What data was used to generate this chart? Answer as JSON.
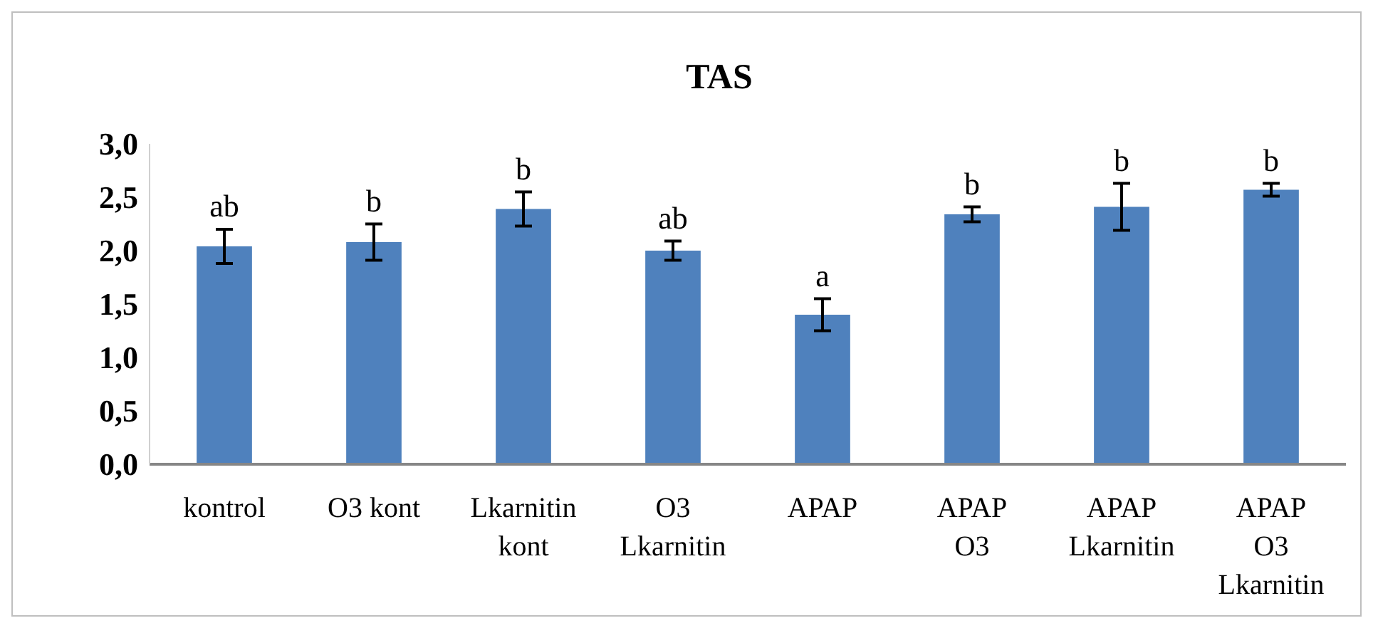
{
  "chart_data": {
    "type": "bar",
    "title": "TAS",
    "categories": [
      "kontrol",
      "O3 kont",
      "Lkarnitin\nkont",
      "O3\nLkarnitin",
      "APAP",
      "APAP\nO3",
      "APAP\nLkarnitin",
      "APAP\nO3\nLkarnitin"
    ],
    "values": [
      2.04,
      2.08,
      2.39,
      2.0,
      1.4,
      2.34,
      2.41,
      2.57
    ],
    "errors": [
      0.16,
      0.17,
      0.16,
      0.09,
      0.15,
      0.07,
      0.22,
      0.06
    ],
    "color": "#4f81bd",
    "ylim": [
      0,
      3
    ],
    "yticks": [
      {
        "value": 0,
        "label": "0,0"
      },
      {
        "value": 0.5,
        "label": "0,5"
      },
      {
        "value": 1,
        "label": "1,0"
      },
      {
        "value": 1.5,
        "label": "1,5"
      },
      {
        "value": 2,
        "label": "2,0"
      },
      {
        "value": 2.5,
        "label": "2,5"
      },
      {
        "value": 3,
        "label": "3,0"
      }
    ],
    "annotations": [
      {
        "text": "ab",
        "x": "kontrol",
        "y": 2.2
      },
      {
        "text": "b",
        "x": "O3 kont",
        "y": 2.25
      },
      {
        "text": "b",
        "x": "Lkarnitin\nkont",
        "y": 2.55
      },
      {
        "text": "ab",
        "x": "O3\nLkarnitin",
        "y": 2.09
      },
      {
        "text": "a",
        "x": "APAP",
        "y": 1.55
      },
      {
        "text": "b",
        "x": "APAP\nO3",
        "y": 2.41
      },
      {
        "text": "b",
        "x": "APAP\nLkarnitin",
        "y": 2.63
      },
      {
        "text": "b",
        "x": "APAP\nO3\nLkarnitin",
        "y": 2.63
      }
    ]
  }
}
